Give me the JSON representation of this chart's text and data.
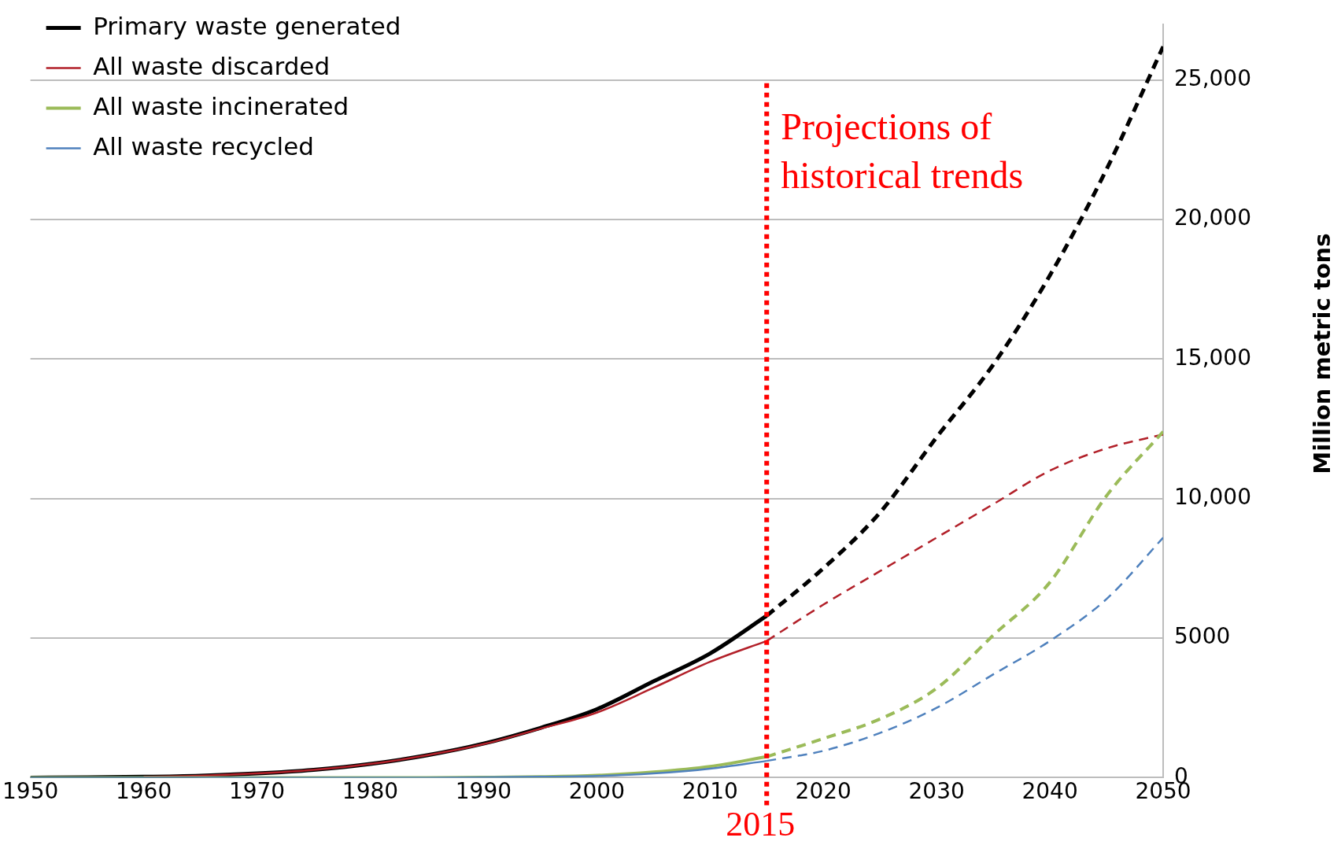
{
  "chart_data": {
    "type": "line",
    "ylabel": "Million metric tons",
    "xlim": [
      1950,
      2050
    ],
    "xticks": [
      1950,
      1960,
      1970,
      1980,
      1990,
      2000,
      2010,
      2020,
      2030,
      2040,
      2050
    ],
    "ylim": [
      0,
      27000
    ],
    "yticks": [
      {
        "value": 0,
        "label": "0"
      },
      {
        "value": 5000,
        "label": "5000"
      },
      {
        "value": 10000,
        "label": "10,000"
      },
      {
        "value": 15000,
        "label": "15,000"
      },
      {
        "value": 20000,
        "label": "20,000"
      },
      {
        "value": 25000,
        "label": "25,000"
      }
    ],
    "grid": "y",
    "legend": "top left",
    "marker": "none",
    "ref_lines": [
      {
        "axis": "x",
        "value": 2015,
        "label": "2015",
        "color": "#ff0000",
        "line_style": "dotted"
      }
    ],
    "annotations": [
      "Projections of historical trends"
    ],
    "series": [
      {
        "name": "Primary waste generated",
        "color": "#000000",
        "line_style": "solid",
        "x": [
          1950,
          1955,
          1960,
          1965,
          1970,
          1975,
          1980,
          1985,
          1990,
          1995,
          2000,
          2005,
          2010,
          2015
        ],
        "values": [
          0,
          10,
          30,
          70,
          150,
          280,
          490,
          800,
          1220,
          1780,
          2450,
          3450,
          4450,
          5800
        ]
      },
      {
        "name": "All waste discarded",
        "color": "#b22029",
        "line_style": "solid",
        "x": [
          1960,
          1965,
          1970,
          1975,
          1980,
          1985,
          1990,
          1995,
          2000,
          2005,
          2010,
          2015
        ],
        "values": [
          30,
          70,
          150,
          280,
          490,
          800,
          1200,
          1750,
          2330,
          3220,
          4150,
          4900
        ]
      },
      {
        "name": "All waste incinerated",
        "color": "#9bbb59",
        "line_style": "solid",
        "x": [
          1950,
          1955,
          1960,
          1965,
          1970,
          1975,
          1980,
          1985,
          1990,
          1995,
          2000,
          2005,
          2010,
          2015
        ],
        "values": [
          0,
          0,
          0,
          0,
          0,
          0,
          0,
          0,
          10,
          30,
          80,
          200,
          400,
          750
        ]
      },
      {
        "name": "All waste recycled",
        "color": "#4f81bd",
        "line_style": "solid",
        "x": [
          1950,
          1955,
          1960,
          1965,
          1970,
          1975,
          1980,
          1985,
          1990,
          1995,
          2000,
          2005,
          2010,
          2015
        ],
        "values": [
          0,
          0,
          0,
          0,
          0,
          0,
          0,
          0,
          10,
          30,
          60,
          150,
          320,
          600
        ]
      },
      {
        "color": "#000000",
        "line_style": "dashed",
        "x": [
          2015,
          2020,
          2025,
          2030,
          2035,
          2040,
          2045,
          2050
        ],
        "values": [
          5800,
          7500,
          9500,
          12200,
          14800,
          18000,
          21800,
          26200
        ]
      },
      {
        "color": "#b22029",
        "line_style": "dashed",
        "x": [
          2015,
          2020,
          2025,
          2030,
          2035,
          2040,
          2045,
          2050
        ],
        "values": [
          4900,
          6200,
          7400,
          8600,
          9800,
          11000,
          11800,
          12300
        ]
      },
      {
        "color": "#9bbb59",
        "line_style": "dashed",
        "x": [
          2015,
          2020,
          2025,
          2030,
          2035,
          2040,
          2045,
          2050
        ],
        "values": [
          750,
          1400,
          2100,
          3200,
          5100,
          7000,
          10100,
          12400
        ]
      },
      {
        "color": "#4f81bd",
        "line_style": "dashed",
        "x": [
          2015,
          2020,
          2025,
          2030,
          2035,
          2040,
          2045,
          2050
        ],
        "values": [
          600,
          960,
          1600,
          2500,
          3700,
          4900,
          6400,
          8600
        ]
      }
    ]
  }
}
